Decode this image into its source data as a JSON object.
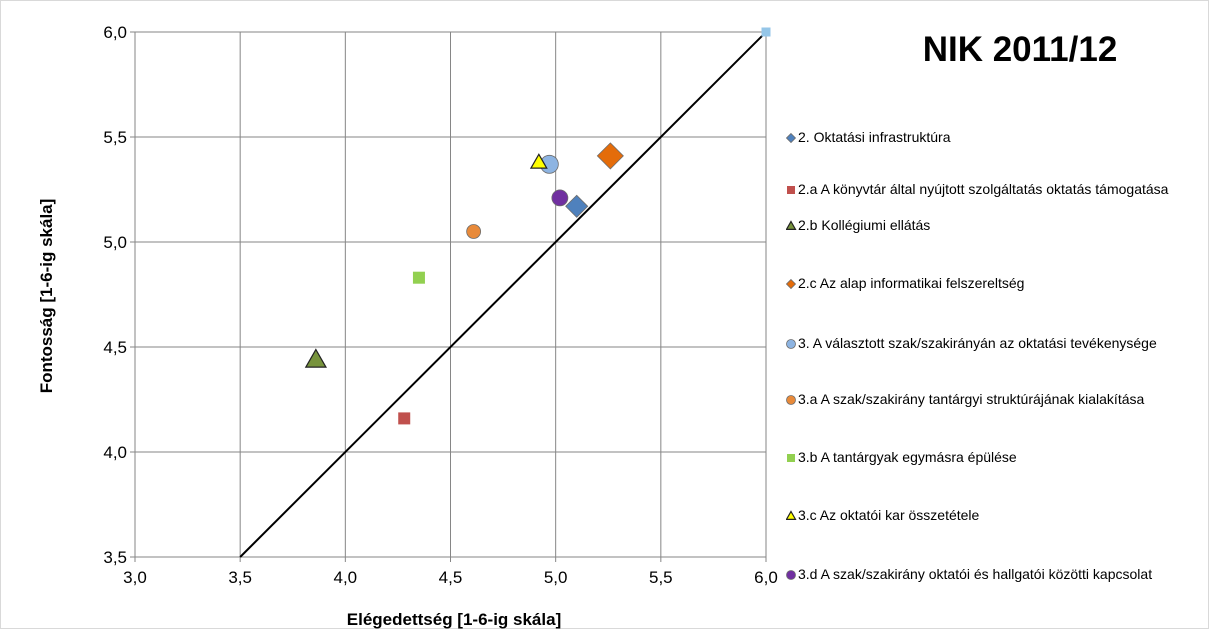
{
  "chart_data": {
    "type": "scatter",
    "title": "NIK 2011/12",
    "xlabel": "Elégedettség [1-6-ig skála]",
    "ylabel": "Fontosság [1-6-ig skála]",
    "xlim": [
      3.0,
      6.0
    ],
    "ylim": [
      3.5,
      6.0
    ],
    "x_ticks": [
      "3,0",
      "3,5",
      "4,0",
      "4,5",
      "5,0",
      "5,5",
      "6,0"
    ],
    "y_ticks": [
      "3,5",
      "4,0",
      "4,5",
      "5,0",
      "5,5",
      "6,0"
    ],
    "grid": true,
    "legend_position": "right",
    "reference_line": {
      "from": [
        3.5,
        3.5
      ],
      "to": [
        6.0,
        6.0
      ]
    },
    "extra_point": {
      "x": 6.0,
      "y": 6.0,
      "shape": "square",
      "color": "#95c6e8"
    },
    "series": [
      {
        "name": "2. Oktatási infrastruktúra",
        "x": 5.1,
        "y": 5.17,
        "shape": "diamond",
        "color": "#4f81bd",
        "size": 11
      },
      {
        "name": "2.a  A könyvtár által nyújtott szolgáltatás oktatás támogatása",
        "x": 4.28,
        "y": 4.16,
        "shape": "square",
        "color": "#c0504d",
        "size": 12
      },
      {
        "name": "2.b  Kollégiumi ellátás",
        "x": 3.86,
        "y": 4.44,
        "shape": "triangle",
        "color": "#77933c",
        "size": 14
      },
      {
        "name": "2.c  Az alap informatikai felszereltség",
        "x": 5.26,
        "y": 5.41,
        "shape": "diamond",
        "color": "#e46c0a",
        "size": 13
      },
      {
        "name": "3. A választott szak/szakirányán az oktatási tevékenysége",
        "x": 4.97,
        "y": 5.37,
        "shape": "circle",
        "color": "#8db4e2",
        "size": 9
      },
      {
        "name": "3.a  A  szak/szakirány tantárgyi struktúrájának kialakítása",
        "x": 4.61,
        "y": 5.05,
        "shape": "circle",
        "color": "#e88a3a",
        "size": 7
      },
      {
        "name": "3.b  A tantárgyak egymásra épülése",
        "x": 4.35,
        "y": 4.83,
        "shape": "square",
        "color": "#92d050",
        "size": 12
      },
      {
        "name": "3.c  Az oktatói kar összetétele",
        "x": 4.92,
        "y": 5.38,
        "shape": "triangle",
        "color": "#ffff00",
        "size": 11
      },
      {
        "name": "3.d  A szak/szakirány oktatói és hallgatói közötti kapcsolat",
        "x": 5.02,
        "y": 5.21,
        "shape": "circle",
        "color": "#7030a0",
        "size": 8
      }
    ]
  }
}
